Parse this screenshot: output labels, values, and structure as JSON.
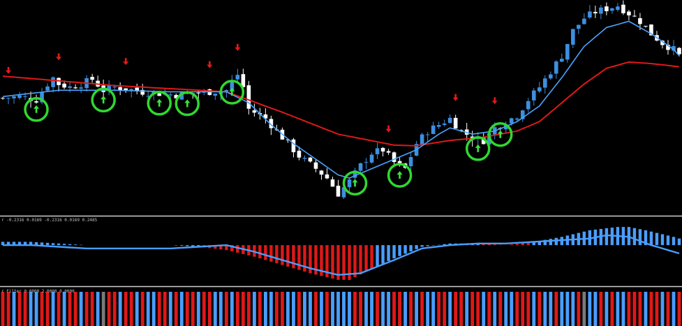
{
  "colors": {
    "background": "#000000",
    "bull_candle": "#3d8fe0",
    "bear_candle": "#ffffff",
    "fast_ma": "#4aa3ff",
    "slow_ma": "#e01818",
    "separator": "#cfcfcf",
    "signal_circle": "#2fd82f",
    "buy_arrow": "#39e639",
    "sell_arrow": "#e81818",
    "hist_positive": "#4a9eff",
    "hist_negative": "#e01818",
    "filter_neutral": "#7a7a7a"
  },
  "macd_panel": {
    "label": "r -0.2316 0.0169 -0.2316 0.0169 0.2485"
  },
  "filter_panel": {
    "label": "r Filter 0.0000 2.0000 0.0000"
  },
  "chart_data": [
    {
      "type": "candlestick",
      "panel": "price",
      "bars": 122,
      "price_path": [
        [
          0,
          50.5
        ],
        [
          3,
          51
        ],
        [
          6,
          50
        ],
        [
          8,
          55
        ],
        [
          9,
          57
        ],
        [
          10,
          55
        ],
        [
          12,
          54
        ],
        [
          14,
          55
        ],
        [
          16,
          56.5
        ],
        [
          18,
          53
        ],
        [
          20,
          54
        ],
        [
          22,
          53.5
        ],
        [
          25,
          52.5
        ],
        [
          28,
          52
        ],
        [
          31,
          51.5
        ],
        [
          34,
          52
        ],
        [
          37,
          52.5
        ],
        [
          40,
          53
        ],
        [
          42,
          58
        ],
        [
          43,
          54
        ],
        [
          44,
          47
        ],
        [
          47,
          44
        ],
        [
          50,
          38
        ],
        [
          53,
          32
        ],
        [
          56,
          28
        ],
        [
          58,
          25
        ],
        [
          60,
          20
        ],
        [
          62,
          24
        ],
        [
          64,
          29
        ],
        [
          66,
          33
        ],
        [
          68,
          34
        ],
        [
          70,
          30
        ],
        [
          72,
          28
        ],
        [
          74,
          36
        ],
        [
          76,
          40
        ],
        [
          78,
          42
        ],
        [
          80,
          44
        ],
        [
          82,
          40
        ],
        [
          84,
          38
        ],
        [
          86,
          37
        ],
        [
          88,
          41
        ],
        [
          90,
          43
        ],
        [
          92,
          45
        ],
        [
          94,
          50
        ],
        [
          96,
          54
        ],
        [
          98,
          59
        ],
        [
          100,
          64
        ],
        [
          102,
          72
        ],
        [
          104,
          76
        ],
        [
          106,
          78
        ],
        [
          108,
          79
        ],
        [
          110,
          80
        ],
        [
          112,
          77.5
        ],
        [
          114,
          75
        ],
        [
          116,
          71
        ],
        [
          118,
          68
        ],
        [
          120,
          66
        ],
        [
          121,
          64
        ]
      ],
      "fast_ma_path": [
        [
          0,
          51
        ],
        [
          10,
          53
        ],
        [
          20,
          53
        ],
        [
          30,
          52.5
        ],
        [
          40,
          52.5
        ],
        [
          44,
          49
        ],
        [
          48,
          42
        ],
        [
          52,
          36
        ],
        [
          56,
          31
        ],
        [
          60,
          26
        ],
        [
          62,
          25
        ],
        [
          66,
          28
        ],
        [
          70,
          31
        ],
        [
          74,
          34
        ],
        [
          78,
          39
        ],
        [
          80,
          41
        ],
        [
          84,
          39
        ],
        [
          88,
          40
        ],
        [
          92,
          43
        ],
        [
          96,
          48
        ],
        [
          100,
          57
        ],
        [
          104,
          67
        ],
        [
          108,
          73
        ],
        [
          112,
          75
        ],
        [
          116,
          71
        ],
        [
          120,
          66
        ],
        [
          121,
          64
        ]
      ],
      "slow_ma_path": [
        [
          0,
          57.5
        ],
        [
          10,
          56
        ],
        [
          20,
          54.5
        ],
        [
          30,
          53.5
        ],
        [
          40,
          52.5
        ],
        [
          50,
          46
        ],
        [
          60,
          39
        ],
        [
          70,
          35.5
        ],
        [
          74,
          35.3
        ],
        [
          80,
          37
        ],
        [
          86,
          38
        ],
        [
          92,
          40
        ],
        [
          96,
          43
        ],
        [
          100,
          49
        ],
        [
          104,
          55
        ],
        [
          108,
          60
        ],
        [
          112,
          62
        ],
        [
          116,
          61.5
        ],
        [
          121,
          60.5
        ]
      ],
      "buy_signals": [
        6,
        18,
        28,
        33,
        41,
        63,
        71,
        85,
        89
      ],
      "sell_signals": [
        1,
        10,
        22,
        37,
        42,
        69,
        81,
        88,
        112
      ],
      "ylim": [
        15,
        80
      ]
    },
    {
      "type": "histogram",
      "panel": "oscillator",
      "hist_path": [
        [
          0,
          2
        ],
        [
          5,
          2
        ],
        [
          10,
          1
        ],
        [
          15,
          0
        ],
        [
          20,
          0
        ],
        [
          25,
          0
        ],
        [
          30,
          0
        ],
        [
          35,
          -1
        ],
        [
          40,
          -3
        ],
        [
          45,
          -7
        ],
        [
          50,
          -12
        ],
        [
          55,
          -17
        ],
        [
          60,
          -21
        ],
        [
          62,
          -21
        ],
        [
          65,
          -16
        ],
        [
          70,
          -8
        ],
        [
          75,
          -1
        ],
        [
          80,
          1
        ],
        [
          85,
          1
        ],
        [
          90,
          0
        ],
        [
          95,
          2
        ],
        [
          100,
          5
        ],
        [
          105,
          9
        ],
        [
          110,
          11
        ],
        [
          112,
          11
        ],
        [
          115,
          9
        ],
        [
          120,
          5
        ],
        [
          121,
          4
        ]
      ],
      "signal_path": [
        [
          0,
          0
        ],
        [
          5,
          0
        ],
        [
          10,
          -1
        ],
        [
          15,
          -2
        ],
        [
          20,
          -2
        ],
        [
          25,
          -2
        ],
        [
          30,
          -2
        ],
        [
          35,
          -1
        ],
        [
          40,
          0
        ],
        [
          45,
          -4
        ],
        [
          50,
          -9
        ],
        [
          55,
          -14
        ],
        [
          60,
          -18
        ],
        [
          64,
          -17
        ],
        [
          70,
          -9
        ],
        [
          75,
          -2
        ],
        [
          80,
          0
        ],
        [
          85,
          1
        ],
        [
          90,
          1
        ],
        [
          95,
          2
        ],
        [
          100,
          3
        ],
        [
          105,
          4
        ],
        [
          108,
          6
        ],
        [
          112,
          5
        ],
        [
          116,
          0
        ],
        [
          120,
          -4
        ],
        [
          121,
          -5
        ]
      ],
      "ylim": [
        -24,
        14
      ]
    },
    {
      "type": "bar",
      "panel": "filter",
      "values": [
        -1,
        -1,
        1,
        -1,
        -1,
        1,
        1,
        -1,
        -1,
        1,
        -1,
        1,
        -1,
        -1,
        1,
        -1,
        -1,
        1,
        0,
        -1,
        -1,
        1,
        -1,
        -1,
        1,
        -1,
        1,
        1,
        -1,
        -1,
        1,
        -1,
        1,
        -1,
        -1,
        1,
        -1,
        -1,
        1,
        1,
        -1,
        1,
        -1,
        -1,
        -1,
        1,
        -1,
        1,
        1,
        -1,
        -1,
        1,
        1,
        -1,
        1,
        1,
        -1,
        1,
        -1,
        1,
        1,
        1,
        1,
        -1,
        -1,
        1,
        1,
        -1,
        1,
        1,
        -1,
        -1,
        1,
        -1,
        1,
        -1,
        1,
        1,
        -1,
        -1,
        1,
        -1,
        -1,
        1,
        -1,
        -1,
        1,
        -1,
        1,
        -1,
        1,
        1,
        -1,
        -1,
        -1,
        1,
        -1,
        1,
        1,
        -1,
        1,
        1,
        1,
        -1,
        0,
        1,
        1,
        -1,
        1,
        -1,
        1,
        1,
        -1,
        -1,
        -1,
        1,
        -1,
        -1,
        1,
        -1,
        1,
        -1
      ]
    }
  ]
}
